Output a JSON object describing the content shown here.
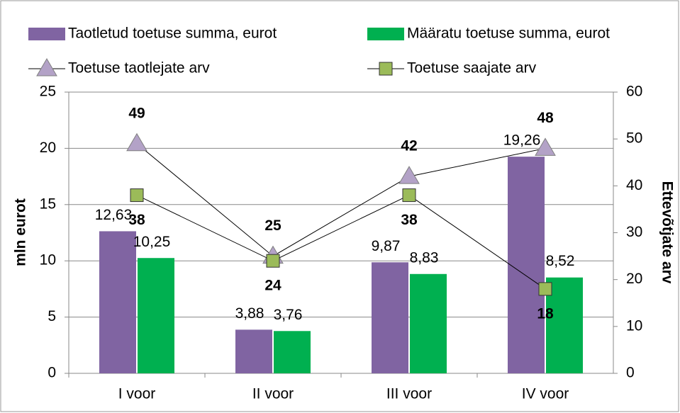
{
  "chart_data": {
    "type": "bar",
    "categories": [
      "I voor",
      "II voor",
      "III voor",
      "IV voor"
    ],
    "ylabel": "mln eurot",
    "y2label": "Ettevõtjate arv",
    "ylim": [
      0,
      25
    ],
    "yticks": [
      0,
      5,
      10,
      15,
      20,
      25
    ],
    "y2lim": [
      0,
      60
    ],
    "y2ticks": [
      0,
      10,
      20,
      30,
      40,
      50,
      60
    ],
    "grid": true,
    "series": [
      {
        "name": "Taotletud toetuse summa, eurot",
        "type": "bar",
        "color": "#8064a2",
        "values": [
          12.63,
          3.88,
          9.87,
          19.26
        ],
        "value_labels": [
          "12,63",
          "3,88",
          "9,87",
          "19,26"
        ]
      },
      {
        "name": "Määratu toetuse summa, eurot",
        "type": "bar",
        "color": "#00b050",
        "values": [
          10.25,
          3.76,
          8.83,
          8.52
        ],
        "value_labels": [
          "10,25",
          "3,76",
          "8,83",
          "8,52"
        ]
      },
      {
        "name": "Toetuse taotlejate arv",
        "type": "line",
        "marker": "triangle",
        "axis": "y2",
        "color": "#b3a2c7",
        "values": [
          49,
          25,
          42,
          48
        ]
      },
      {
        "name": "Toetuse saajate arv",
        "type": "line",
        "marker": "square",
        "axis": "y2",
        "color": "#9bbb59",
        "values": [
          38,
          24,
          38,
          18
        ]
      }
    ]
  }
}
